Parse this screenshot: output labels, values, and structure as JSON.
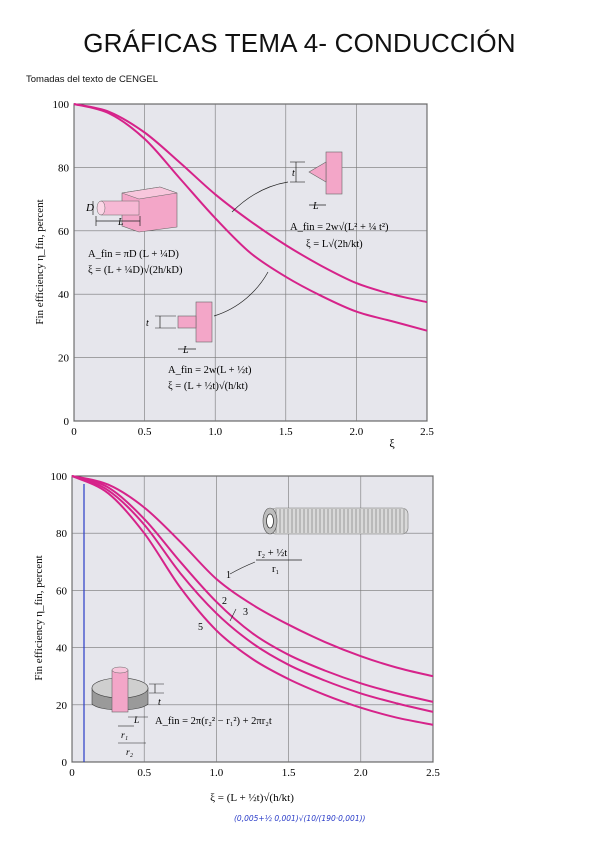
{
  "page": {
    "title": "GRÁFICAS TEMA 4- CONDUCCIÓN",
    "subtitle": "Tomadas del texto de CENGEL"
  },
  "colors": {
    "curve": "#d6238a",
    "grid": "#777777",
    "plot_bg": "#e6e6ec",
    "fin": "#f3a6c8",
    "hand": "#2a3cc8"
  },
  "chart_data": [
    {
      "type": "line",
      "title": "",
      "xlabel": "ξ",
      "ylabel": "Fin efficiency η_fin, percent",
      "xlim": [
        0,
        2.5
      ],
      "ylim": [
        0,
        100
      ],
      "xticks": [
        "0",
        "0.5",
        "1.0",
        "1.5",
        "2.0",
        "2.5"
      ],
      "yticks": [
        "0",
        "20",
        "40",
        "60",
        "80",
        "100"
      ],
      "grid": true,
      "x": [
        0,
        0.25,
        0.5,
        0.75,
        1.0,
        1.25,
        1.5,
        1.75,
        2.0,
        2.25,
        2.5
      ],
      "series": [
        {
          "values": [
            100,
            97.5,
            91,
            81.5,
            71.5,
            63,
            55.5,
            49,
            43.5,
            40,
            37.5
          ]
        },
        {
          "values": [
            100,
            97,
            89,
            76.5,
            64,
            53,
            45.5,
            39.5,
            34.5,
            31.5,
            28.5
          ]
        }
      ],
      "annotations": {
        "pin_fin": {
          "dim_D": "D",
          "dim_L": "L",
          "area": "A_fin = πD (L + ¼D)",
          "xi": "ξ = (L + ¼D)√(2h/kD)"
        },
        "triangular_fin": {
          "dim_t": "t",
          "dim_L": "L",
          "area": "A_fin = 2w√(L² + ¼ t²)",
          "xi": "ξ = L√(2h/kt)"
        },
        "rectangular_fin": {
          "dim_t": "t",
          "dim_L": "L",
          "area": "A_fin = 2w(L + ½t)",
          "xi": "ξ = (L + ½t)√(h/kt)"
        }
      }
    },
    {
      "type": "line",
      "title": "",
      "xlabel": "ξ = (L + ½t)√(h/kt)",
      "ylabel": "Fin efficiency η_fin, percent",
      "xlim": [
        0,
        2.5
      ],
      "ylim": [
        0,
        100
      ],
      "xticks": [
        "0",
        "0.5",
        "1.0",
        "1.5",
        "2.0",
        "2.5"
      ],
      "yticks": [
        "0",
        "20",
        "40",
        "60",
        "80",
        "100"
      ],
      "grid": true,
      "x": [
        0,
        0.25,
        0.5,
        0.75,
        1.0,
        1.25,
        1.5,
        1.75,
        2.0,
        2.25,
        2.5
      ],
      "series": [
        {
          "name": "1",
          "values": [
            100,
            97,
            89,
            77,
            64,
            55,
            48,
            42,
            37,
            33,
            30
          ]
        },
        {
          "name": "2",
          "values": [
            100,
            96,
            85,
            70,
            56,
            45,
            37.5,
            32,
            27.5,
            24,
            21
          ]
        },
        {
          "name": "3",
          "values": [
            100,
            95,
            83,
            66,
            52,
            41.5,
            34,
            28.5,
            24,
            20.5,
            17.5
          ]
        },
        {
          "name": "5",
          "values": [
            100,
            94,
            80,
            61,
            46,
            36,
            29,
            23.5,
            19,
            15.5,
            13
          ]
        }
      ],
      "annotations": {
        "param_top": "r₂ + ½t",
        "param_bottom": "r₁",
        "dim_t": "t",
        "dim_L": "L",
        "dim_r1": "r₁",
        "dim_r2": "r₂",
        "area": "A_fin = 2π(r₂² − r₁²) + 2πr₂t"
      },
      "handwritten": "(0,005+½ 0,001)√(10/(190·0,001))"
    }
  ]
}
